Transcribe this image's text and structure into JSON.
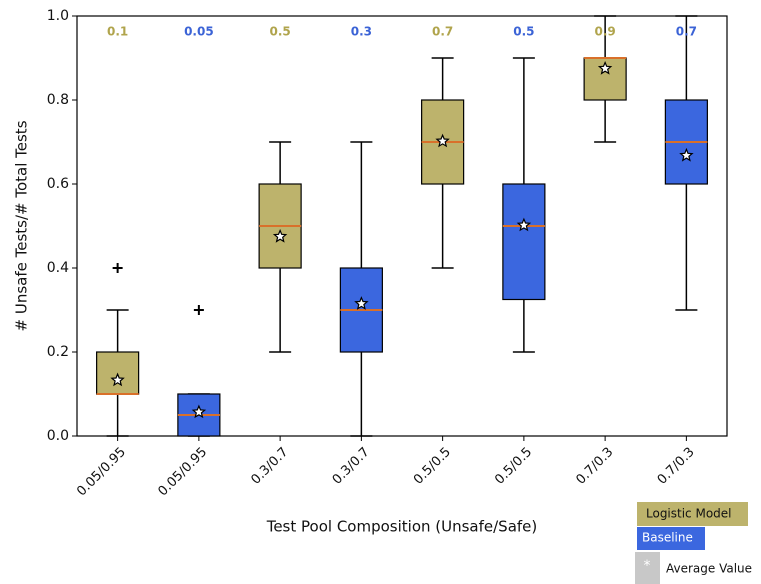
{
  "chart_data": {
    "type": "box",
    "xlabel": "Test Pool Composition (Unsafe/Safe)",
    "ylabel": "# Unsafe Tests/# Total Tests",
    "ylim": [
      0,
      1
    ],
    "yticks": [
      {
        "value": 0,
        "label": "0.0"
      },
      0.2,
      0.4,
      0.6,
      0.8,
      {
        "value": 1,
        "label": "1.0"
      }
    ],
    "median_color": "#d9702a",
    "groups": [
      {
        "name": "Logistic Model",
        "color": "#bdb36c",
        "label_color": "#b0a44c"
      },
      {
        "name": "Baseline",
        "color": "#3b67df",
        "label_color": "#3b63d6"
      }
    ],
    "mean_marker": {
      "name": "Average Value"
    },
    "boxes": [
      {
        "category": "0.05/0.95",
        "group": 0,
        "whisker_low": 0.0,
        "q1": 0.1,
        "median": 0.1,
        "q3": 0.2,
        "whisker_high": 0.3,
        "mean": 0.133,
        "outliers": [
          0.4
        ]
      },
      {
        "category": "0.05/0.95",
        "group": 1,
        "whisker_low": 0.0,
        "q1": 0.0,
        "median": 0.05,
        "q3": 0.1,
        "whisker_high": 0.1,
        "mean": 0.057,
        "outliers": [
          0.3
        ]
      },
      {
        "category": "0.3/0.7",
        "group": 0,
        "whisker_low": 0.2,
        "q1": 0.4,
        "median": 0.5,
        "q3": 0.6,
        "whisker_high": 0.7,
        "mean": 0.475,
        "outliers": []
      },
      {
        "category": "0.3/0.7",
        "group": 1,
        "whisker_low": 0.0,
        "q1": 0.2,
        "median": 0.3,
        "q3": 0.4,
        "whisker_high": 0.7,
        "mean": 0.315,
        "outliers": []
      },
      {
        "category": "0.5/0.5",
        "group": 0,
        "whisker_low": 0.4,
        "q1": 0.6,
        "median": 0.7,
        "q3": 0.8,
        "whisker_high": 0.9,
        "mean": 0.702,
        "outliers": []
      },
      {
        "category": "0.5/0.5",
        "group": 1,
        "whisker_low": 0.2,
        "q1": 0.325,
        "median": 0.5,
        "q3": 0.6,
        "whisker_high": 0.9,
        "mean": 0.502,
        "outliers": []
      },
      {
        "category": "0.7/0.3",
        "group": 0,
        "whisker_low": 0.7,
        "q1": 0.8,
        "median": 0.9,
        "q3": 0.9,
        "whisker_high": 1.0,
        "mean": 0.875,
        "outliers": []
      },
      {
        "category": "0.7/0.3",
        "group": 1,
        "whisker_low": 0.3,
        "q1": 0.6,
        "median": 0.7,
        "q3": 0.8,
        "whisker_high": 1.0,
        "mean": 0.668,
        "outliers": []
      }
    ]
  }
}
